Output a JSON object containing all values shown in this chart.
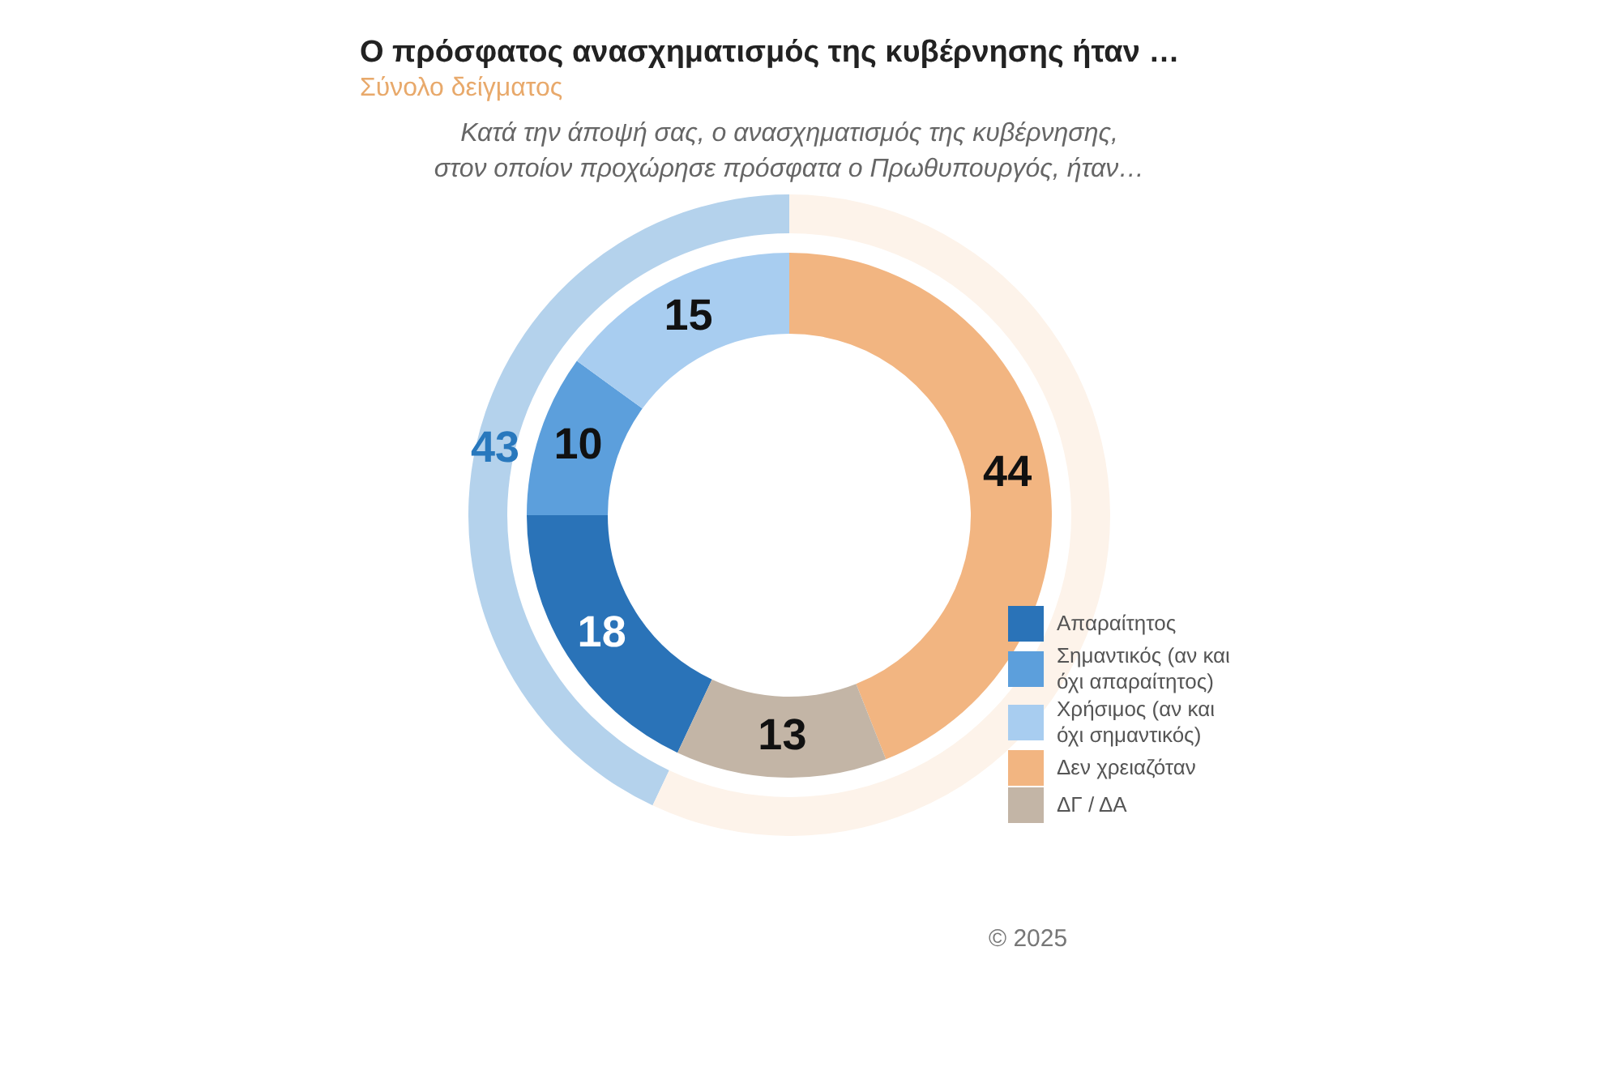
{
  "chart_data": {
    "type": "donut",
    "title": "Ο πρόσφατος ανασχηματισμός της κυβέρνησης ήταν …",
    "subtitle": "Σύνολο δείγματος",
    "categories": [
      "Απαραίτητος",
      "Σημαντικός (αν και όχι απαραίτητος)",
      "Χρήσιμος (αν και όχι σημαντικός)",
      "Δεν χρειαζόταν",
      "ΔΓ / ΔΑ"
    ],
    "series": [
      {
        "values": [
          18,
          10,
          15,
          44,
          13
        ],
        "colors": [
          "#2a73b8",
          "#5c9fdc",
          "#a8cdf0",
          "#f2b581",
          "#c3b5a6"
        ],
        "value_labels": [
          "18",
          "10",
          "15",
          "44",
          "13"
        ]
      },
      {
        "values": [
          43,
          null,
          null,
          57,
          null
        ],
        "colors": [
          "#b4d2ec",
          "#b4d2ec",
          "#b4d2ec",
          "#fdf3ea",
          "#fdf3ea"
        ],
        "value_labels": [
          "43",
          null,
          null,
          null,
          null
        ]
      }
    ],
    "legend": "bottom right",
    "annotations": [
      "Κατά την άποψή σας, ο ανασχηματισμός της κυβέρνησης, στον οποίον προχώρησε πρόσφατα ο Πρωθυπουργός, ήταν…",
      "© 2025"
    ]
  }
}
